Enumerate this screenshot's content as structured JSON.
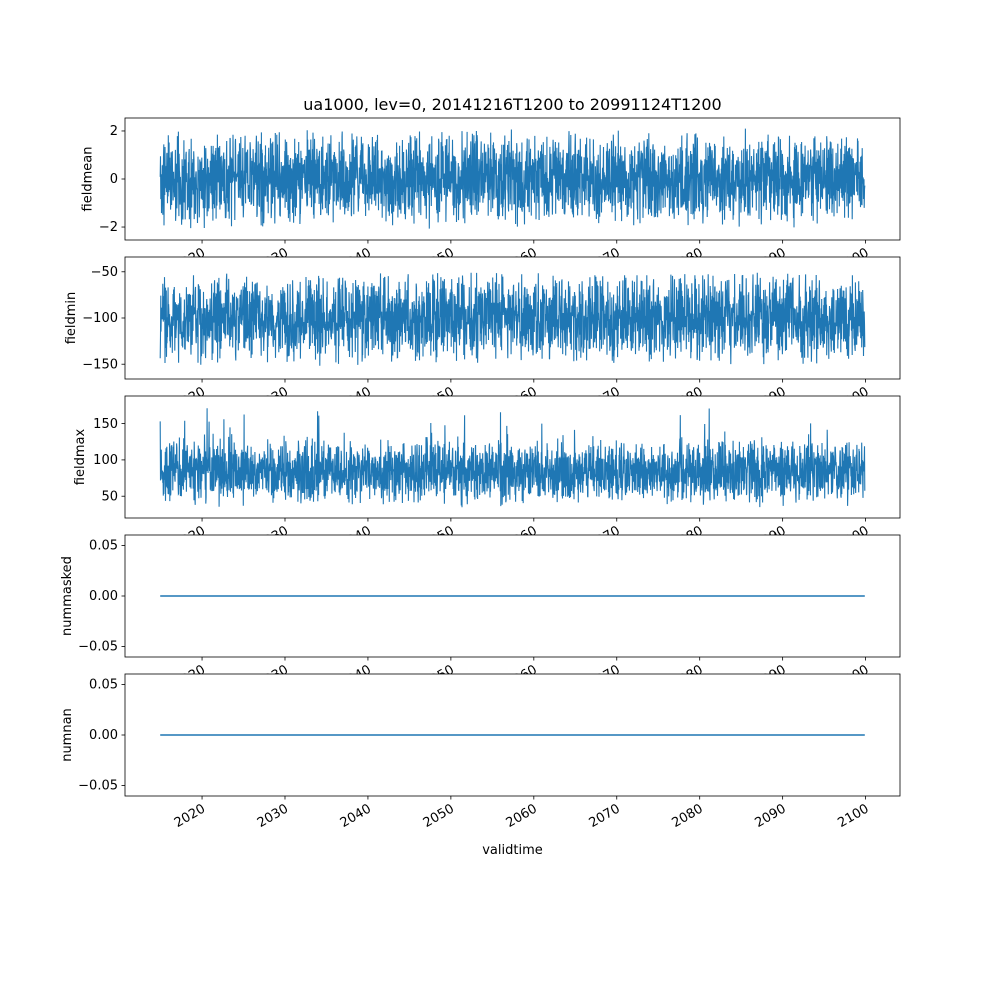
{
  "figure": {
    "title": "ua1000, lev=0, 20141216T1200 to 20991124T1200",
    "xlabel": "validtime",
    "background": "#ffffff",
    "line_color": "#1f77b4",
    "text_color": "#000000"
  },
  "chart_data": [
    {
      "type": "line",
      "name": "fieldmean",
      "ylabel": "fieldmean",
      "x": {
        "start": 2014.96,
        "end": 2099.9,
        "lim": [
          2010.71,
          2104.15
        ],
        "ticks": [
          2020,
          2030,
          2040,
          2050,
          2060,
          2070,
          2080,
          2090,
          2100
        ]
      },
      "yticks": [
        2,
        0,
        -2
      ],
      "ytick_labels": [
        "2",
        "0",
        "−2"
      ],
      "ylim": [
        -2.54,
        2.54
      ],
      "summary": {
        "baseline": 0,
        "dense_band": [
          -1.5,
          1.5
        ],
        "extremes": [
          -2.5,
          2.4
        ],
        "n_points": 2800,
        "appearance": "dense high-frequency noise"
      },
      "model": {
        "kind": "triangular-noise",
        "seed": 11,
        "center": 0,
        "half_band": 2.15,
        "spike_prob": 0.012,
        "spike_amp": 0.4,
        "spike_dir": 0
      }
    },
    {
      "type": "line",
      "name": "fieldmin",
      "ylabel": "fieldmin",
      "x": {
        "start": 2014.96,
        "end": 2099.9,
        "lim": [
          2010.71,
          2104.15
        ],
        "ticks": [
          2020,
          2030,
          2040,
          2050,
          2060,
          2070,
          2080,
          2090,
          2100
        ]
      },
      "yticks": [
        -50,
        -100,
        -150
      ],
      "ytick_labels": [
        "−50",
        "−100",
        "−150"
      ],
      "ylim": [
        -166,
        -34
      ],
      "summary": {
        "baseline": -100,
        "dense_band": [
          -140,
          -62
        ],
        "extremes": [
          -165,
          -38
        ],
        "n_points": 2800,
        "appearance": "dense high-frequency noise"
      },
      "model": {
        "kind": "triangular-noise",
        "seed": 23,
        "center": -100,
        "half_band": 52,
        "spike_prob": 0.02,
        "spike_amp": 13,
        "spike_dir": 0
      }
    },
    {
      "type": "line",
      "name": "fieldmax",
      "ylabel": "fieldmax",
      "x": {
        "start": 2014.96,
        "end": 2099.9,
        "lim": [
          2010.71,
          2104.15
        ],
        "ticks": [
          2020,
          2030,
          2040,
          2050,
          2060,
          2070,
          2080,
          2090,
          2100
        ]
      },
      "yticks": [
        150,
        100,
        50
      ],
      "ytick_labels": [
        "150",
        "100",
        "50"
      ],
      "ylim": [
        20,
        188
      ],
      "summary": {
        "baseline": 82,
        "dense_band": [
          40,
          130
        ],
        "extremes": [
          30,
          185
        ],
        "n_points": 2800,
        "appearance": "dense noise with upward spikes"
      },
      "model": {
        "kind": "triangular-noise",
        "seed": 37,
        "center": 82,
        "half_band": 48,
        "spike_prob": 0.04,
        "spike_amp": 55,
        "spike_dir": 1
      }
    },
    {
      "type": "line",
      "name": "nummasked",
      "ylabel": "nummasked",
      "x": {
        "start": 2014.96,
        "end": 2099.9,
        "lim": [
          2010.71,
          2104.15
        ],
        "ticks": [
          2020,
          2030,
          2040,
          2050,
          2060,
          2070,
          2080,
          2090,
          2100
        ]
      },
      "yticks": [
        0.05,
        0,
        -0.05
      ],
      "ytick_labels": [
        "0.05",
        "0.00",
        "−0.05"
      ],
      "ylim": [
        -0.0605,
        0.0605
      ],
      "summary": {
        "constant_value": 0,
        "appearance": "flat horizontal line at zero"
      },
      "model": {
        "kind": "constant",
        "value": 0
      }
    },
    {
      "type": "line",
      "name": "numnan",
      "ylabel": "numnan",
      "x": {
        "start": 2014.96,
        "end": 2099.9,
        "lim": [
          2010.71,
          2104.15
        ],
        "ticks": [
          2020,
          2030,
          2040,
          2050,
          2060,
          2070,
          2080,
          2090,
          2100
        ]
      },
      "yticks": [
        0.05,
        0,
        -0.05
      ],
      "ytick_labels": [
        "0.05",
        "0.00",
        "−0.05"
      ],
      "ylim": [
        -0.0605,
        0.0605
      ],
      "summary": {
        "constant_value": 0,
        "appearance": "flat horizontal line at zero"
      },
      "model": {
        "kind": "constant",
        "value": 0
      }
    }
  ]
}
